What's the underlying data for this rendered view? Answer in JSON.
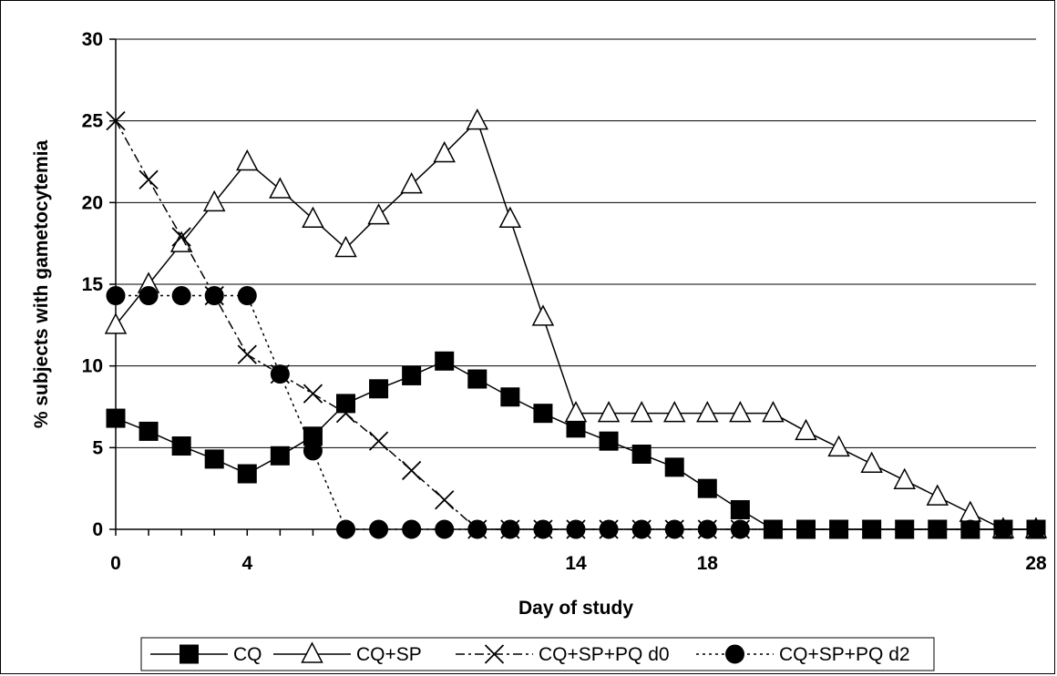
{
  "chart_data": {
    "type": "line",
    "xlabel": "Day of study",
    "ylabel": "% subjects with gametocytemia",
    "xlim": [
      0,
      28
    ],
    "ylim": [
      0,
      30
    ],
    "x_ticks": [
      0,
      4,
      14,
      18,
      28
    ],
    "y_ticks": [
      0,
      5,
      10,
      15,
      20,
      25,
      30
    ],
    "grid": "horizontal",
    "legend_position": "bottom",
    "series": [
      {
        "name": "CQ",
        "marker": "filled-square",
        "line": "solid",
        "color": "#000000",
        "x": [
          0,
          1,
          2,
          3,
          4,
          5,
          6,
          7,
          8,
          9,
          10,
          11,
          12,
          13,
          14,
          15,
          16,
          17,
          18,
          19,
          20,
          21,
          22,
          23,
          24,
          25,
          26,
          27,
          28
        ],
        "y": [
          6.8,
          6.0,
          5.1,
          4.3,
          3.4,
          4.5,
          5.7,
          7.7,
          8.6,
          9.4,
          10.3,
          9.2,
          8.1,
          7.1,
          6.2,
          5.4,
          4.6,
          3.8,
          2.5,
          1.2,
          0,
          0,
          0,
          0,
          0,
          0,
          0,
          0,
          0
        ]
      },
      {
        "name": "CQ+SP",
        "marker": "open-triangle",
        "line": "solid",
        "color": "#000000",
        "x": [
          0,
          1,
          2,
          3,
          4,
          5,
          6,
          7,
          8,
          9,
          10,
          11,
          12,
          13,
          14,
          15,
          16,
          17,
          18,
          19,
          20,
          21,
          22,
          23,
          24,
          25,
          26,
          27,
          28
        ],
        "y": [
          12.5,
          15.0,
          17.5,
          20.0,
          22.5,
          20.8,
          19.0,
          17.2,
          19.2,
          21.1,
          23.0,
          25.0,
          19.0,
          13.0,
          7.1,
          7.1,
          7.1,
          7.1,
          7.1,
          7.1,
          7.1,
          6.0,
          5.0,
          4.0,
          3.0,
          2.0,
          1.0,
          0,
          0
        ]
      },
      {
        "name": "CQ+SP+PQ d0",
        "marker": "x",
        "line": "dash-dot",
        "color": "#000000",
        "x": [
          0,
          1,
          2,
          3,
          4,
          5,
          6,
          7,
          8,
          9,
          10,
          11,
          12,
          13,
          14,
          15,
          16,
          17,
          18,
          19,
          20,
          21,
          22,
          23,
          24,
          25,
          26,
          27,
          28
        ],
        "y": [
          25.0,
          21.4,
          17.9,
          14.3,
          10.7,
          9.5,
          8.3,
          7.1,
          5.4,
          3.6,
          1.8,
          0,
          0,
          0,
          0,
          0,
          0,
          0,
          0,
          0,
          0,
          0,
          0,
          0,
          0,
          0,
          0,
          0,
          0
        ]
      },
      {
        "name": "CQ+SP+PQ d2",
        "marker": "filled-circle",
        "line": "dotted",
        "color": "#000000",
        "x": [
          0,
          1,
          2,
          3,
          4,
          5,
          6,
          7,
          8,
          9,
          10,
          11,
          12,
          13,
          14,
          15,
          16,
          17,
          18,
          19,
          20,
          21,
          22,
          23,
          24,
          25,
          26,
          27,
          28
        ],
        "y": [
          14.3,
          14.3,
          14.3,
          14.3,
          14.3,
          9.5,
          4.8,
          0,
          0,
          0,
          0,
          0,
          0,
          0,
          0,
          0,
          0,
          0,
          0,
          0,
          0,
          0,
          0,
          0,
          0,
          0,
          0,
          0,
          0
        ]
      }
    ]
  }
}
